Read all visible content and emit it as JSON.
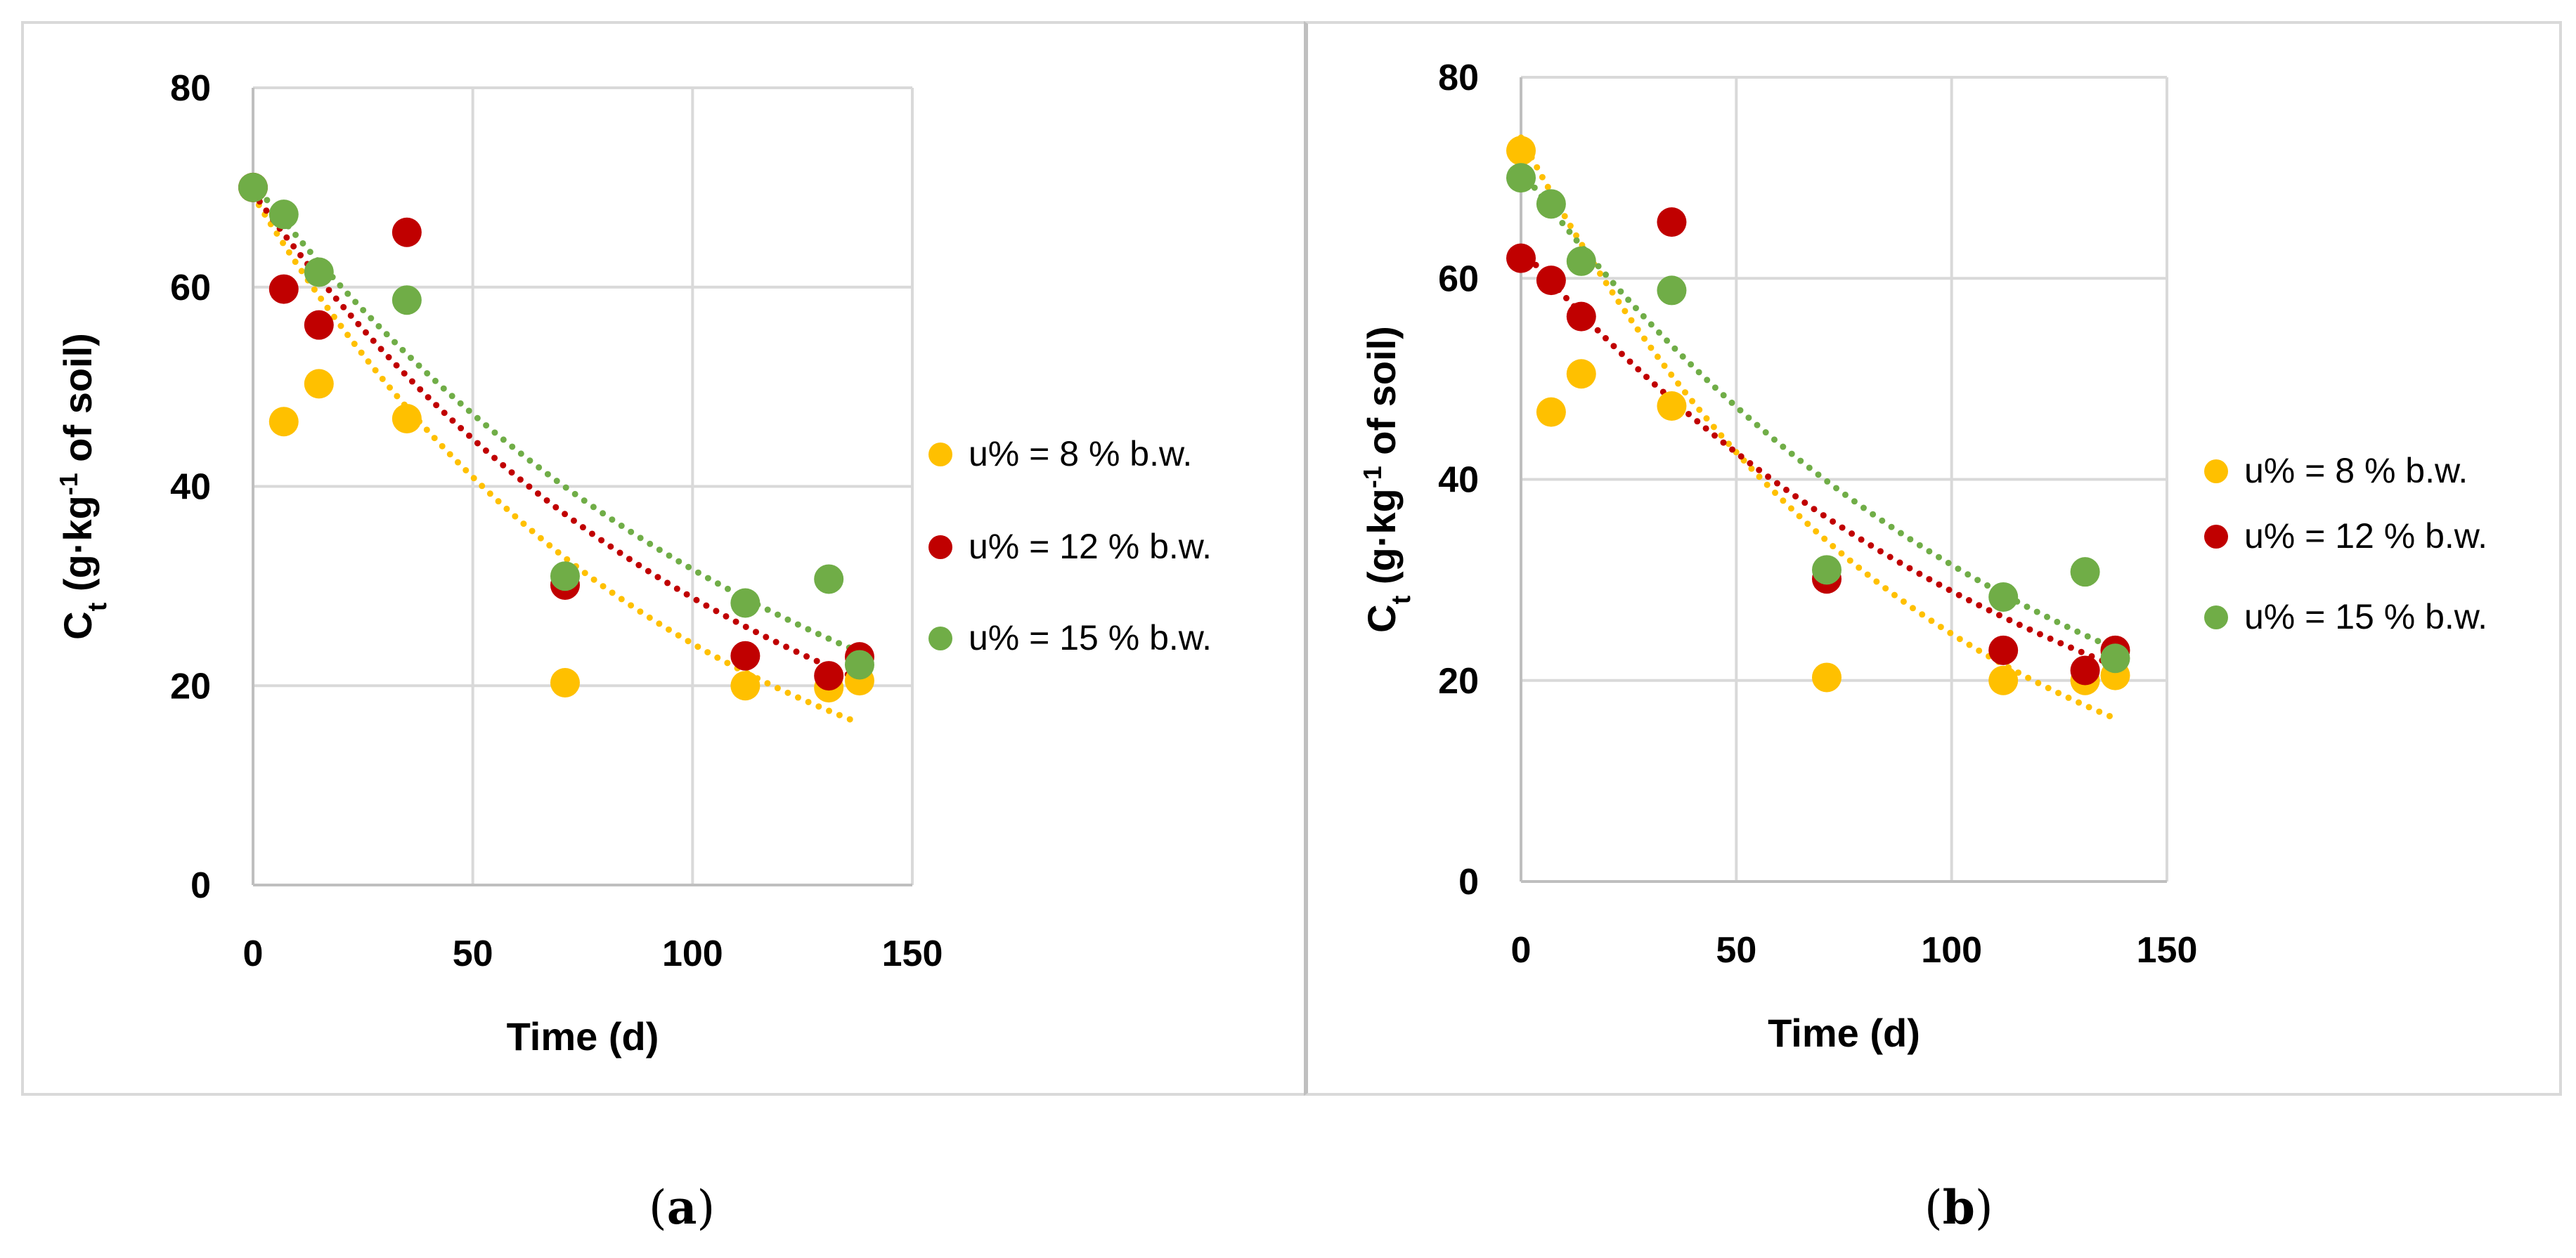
{
  "chart_data": [
    {
      "type": "scatter",
      "panel": "a",
      "caption": "a",
      "xlabel": "Time (d)",
      "ylabel": {
        "main": "C",
        "sub": "t",
        "rest": " (g·kg",
        "sup": "-1",
        "tail": " of soil)"
      },
      "xlim": [
        0,
        150
      ],
      "ylim": [
        0,
        80
      ],
      "xticks": [
        0,
        50,
        100,
        150
      ],
      "yticks": [
        0,
        20,
        40,
        60,
        80
      ],
      "grid": true,
      "legend_position": "right",
      "series": [
        {
          "name": "u% = 8 % b.w.",
          "color": "#FFC000",
          "x": [
            0,
            7,
            15,
            35,
            71,
            112,
            131,
            138
          ],
          "y": [
            70,
            46.5,
            50.3,
            46.8,
            20.3,
            20,
            19.8,
            20.5
          ],
          "trend": {
            "a": 69.2,
            "b": 0.0105
          }
        },
        {
          "name": "u% = 12 % b.w.",
          "color": "#C00000",
          "x": [
            0,
            7,
            15,
            35,
            71,
            112,
            131,
            138
          ],
          "y": [
            70,
            59.8,
            56.2,
            65.5,
            30.1,
            23,
            21,
            22.9
          ],
          "trend": {
            "a": 69.5,
            "b": 0.0088
          }
        },
        {
          "name": "u% = 15 % b.w.",
          "color": "#70AD47",
          "x": [
            0,
            7,
            15,
            35,
            71,
            112,
            131,
            138
          ],
          "y": [
            70,
            67.3,
            61.5,
            58.7,
            31,
            28.3,
            30.7,
            22.1
          ],
          "trend": {
            "a": 70.5,
            "b": 0.008
          }
        }
      ]
    },
    {
      "type": "scatter",
      "panel": "b",
      "caption": "b",
      "xlabel": "Time (d)",
      "ylabel": {
        "main": "C",
        "sub": "t",
        "rest": " (g·kg",
        "sup": "-1",
        "tail": " of soil)"
      },
      "xlim": [
        0,
        150
      ],
      "ylim": [
        0,
        80
      ],
      "xticks": [
        0,
        50,
        100,
        150
      ],
      "yticks": [
        0,
        20,
        40,
        60,
        80
      ],
      "grid": true,
      "legend_position": "right",
      "series": [
        {
          "name": "u% = 8 % b.w.",
          "color": "#FFC000",
          "x": [
            0,
            7,
            14,
            35,
            71,
            112,
            131,
            138
          ],
          "y": [
            72.7,
            46.7,
            50.5,
            47.3,
            20.3,
            20,
            20,
            20.5
          ],
          "trend": {
            "a": 74,
            "b": 0.011
          }
        },
        {
          "name": "u% = 12 % b.w.",
          "color": "#C00000",
          "x": [
            0,
            7,
            14,
            35,
            71,
            112,
            131,
            138
          ],
          "y": [
            62,
            59.8,
            56.2,
            65.6,
            30.1,
            23,
            21,
            23
          ],
          "trend": {
            "a": 63,
            "b": 0.0078
          }
        },
        {
          "name": "u% = 15 % b.w.",
          "color": "#70AD47",
          "x": [
            0,
            7,
            14,
            35,
            71,
            112,
            131,
            138
          ],
          "y": [
            70,
            67.4,
            61.7,
            58.8,
            31,
            28.3,
            30.8,
            22.2
          ],
          "trend": {
            "a": 70.8,
            "b": 0.0081
          }
        }
      ]
    }
  ]
}
